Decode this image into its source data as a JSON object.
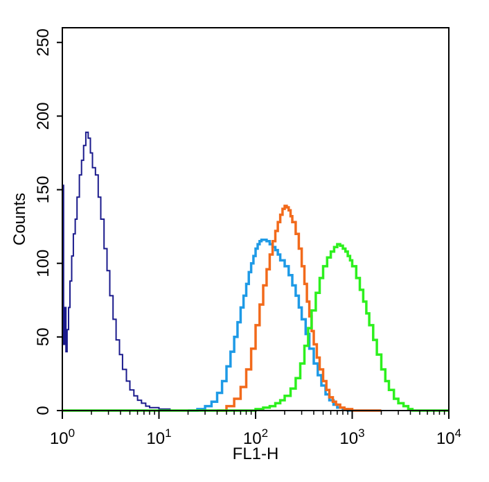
{
  "chart_data": {
    "type": "line",
    "title": "",
    "xlabel": "FL1-H",
    "ylabel": "Counts",
    "x_scale": "log",
    "xlim": [
      1,
      10000
    ],
    "ylim": [
      0,
      260
    ],
    "x_ticks": [
      {
        "value": 1,
        "base": "10",
        "exp": "0"
      },
      {
        "value": 10,
        "base": "10",
        "exp": "1"
      },
      {
        "value": 100,
        "base": "10",
        "exp": "2"
      },
      {
        "value": 1000,
        "base": "10",
        "exp": "3"
      },
      {
        "value": 10000,
        "base": "10",
        "exp": "4"
      }
    ],
    "y_ticks": [
      0,
      50,
      100,
      150,
      200,
      250
    ],
    "grid": false,
    "legend": "none",
    "series": [
      {
        "color": "#1a1a8c",
        "x": [
          1.0,
          1.03,
          1.06,
          1.09,
          1.12,
          1.16,
          1.2,
          1.25,
          1.3,
          1.36,
          1.42,
          1.5,
          1.58,
          1.66,
          1.75,
          1.85,
          1.95,
          2.05,
          2.2,
          2.35,
          2.5,
          2.7,
          2.9,
          3.1,
          3.35,
          3.6,
          3.9,
          4.2,
          4.6,
          5.0,
          5.5,
          6.0,
          6.6,
          7.3,
          8.0,
          9.0,
          10.0,
          11.5,
          13.0,
          15.0
        ],
        "y": [
          153,
          45,
          70,
          40,
          55,
          70,
          88,
          105,
          120,
          130,
          145,
          160,
          170,
          180,
          189,
          185,
          175,
          165,
          160,
          145,
          130,
          110,
          95,
          78,
          62,
          48,
          38,
          28,
          20,
          14,
          10,
          7,
          5,
          3,
          2,
          2,
          1,
          1,
          0,
          0
        ]
      },
      {
        "color": "#1e9ae6",
        "x": [
          20,
          25,
          30,
          35,
          40,
          45,
          50,
          55,
          60,
          65,
          70,
          75,
          80,
          85,
          90,
          95,
          100,
          105,
          110,
          115,
          120,
          130,
          140,
          150,
          160,
          170,
          180,
          200,
          220,
          240,
          260,
          280,
          300,
          330,
          360,
          400,
          440,
          480,
          530,
          580,
          640,
          700,
          800,
          900,
          1000
        ],
        "y": [
          0,
          1,
          3,
          6,
          12,
          20,
          30,
          40,
          50,
          60,
          70,
          78,
          86,
          94,
          100,
          105,
          110,
          113,
          115,
          116,
          116,
          115,
          113,
          111,
          109,
          106,
          102,
          98,
          92,
          85,
          78,
          70,
          62,
          52,
          42,
          32,
          24,
          17,
          11,
          7,
          4,
          2,
          1,
          0,
          0
        ]
      },
      {
        "color": "#f26a1b",
        "x": [
          40,
          50,
          60,
          70,
          80,
          90,
          100,
          110,
          120,
          130,
          140,
          150,
          160,
          170,
          180,
          190,
          200,
          210,
          220,
          230,
          240,
          260,
          280,
          300,
          320,
          340,
          360,
          380,
          400,
          430,
          460,
          500,
          540,
          580,
          630,
          680,
          750,
          830,
          920,
          1000,
          1150,
          1300,
          1500,
          2000
        ],
        "y": [
          0,
          3,
          8,
          16,
          28,
          42,
          58,
          72,
          85,
          96,
          106,
          115,
          122,
          128,
          133,
          137,
          139,
          138,
          136,
          132,
          128,
          120,
          110,
          98,
          86,
          74,
          64,
          54,
          45,
          36,
          28,
          20,
          14,
          9,
          6,
          4,
          2,
          1,
          1,
          0,
          0,
          0,
          0,
          0
        ]
      },
      {
        "color": "#2df01e",
        "x": [
          1,
          50,
          100,
          120,
          140,
          160,
          180,
          200,
          230,
          260,
          290,
          320,
          350,
          380,
          420,
          460,
          500,
          550,
          600,
          650,
          700,
          750,
          800,
          850,
          900,
          950,
          1000,
          1100,
          1200,
          1300,
          1400,
          1500,
          1650,
          1800,
          2000,
          2200,
          2400,
          2700,
          3000,
          3400,
          3800,
          4200,
          5000,
          10000
        ],
        "y": [
          0,
          0,
          1,
          2,
          3,
          5,
          7,
          10,
          15,
          22,
          32,
          44,
          56,
          68,
          80,
          90,
          98,
          104,
          108,
          111,
          113,
          112,
          110,
          108,
          105,
          102,
          98,
          90,
          82,
          74,
          66,
          58,
          48,
          38,
          28,
          20,
          14,
          8,
          5,
          3,
          1,
          0,
          0,
          0
        ]
      }
    ]
  }
}
